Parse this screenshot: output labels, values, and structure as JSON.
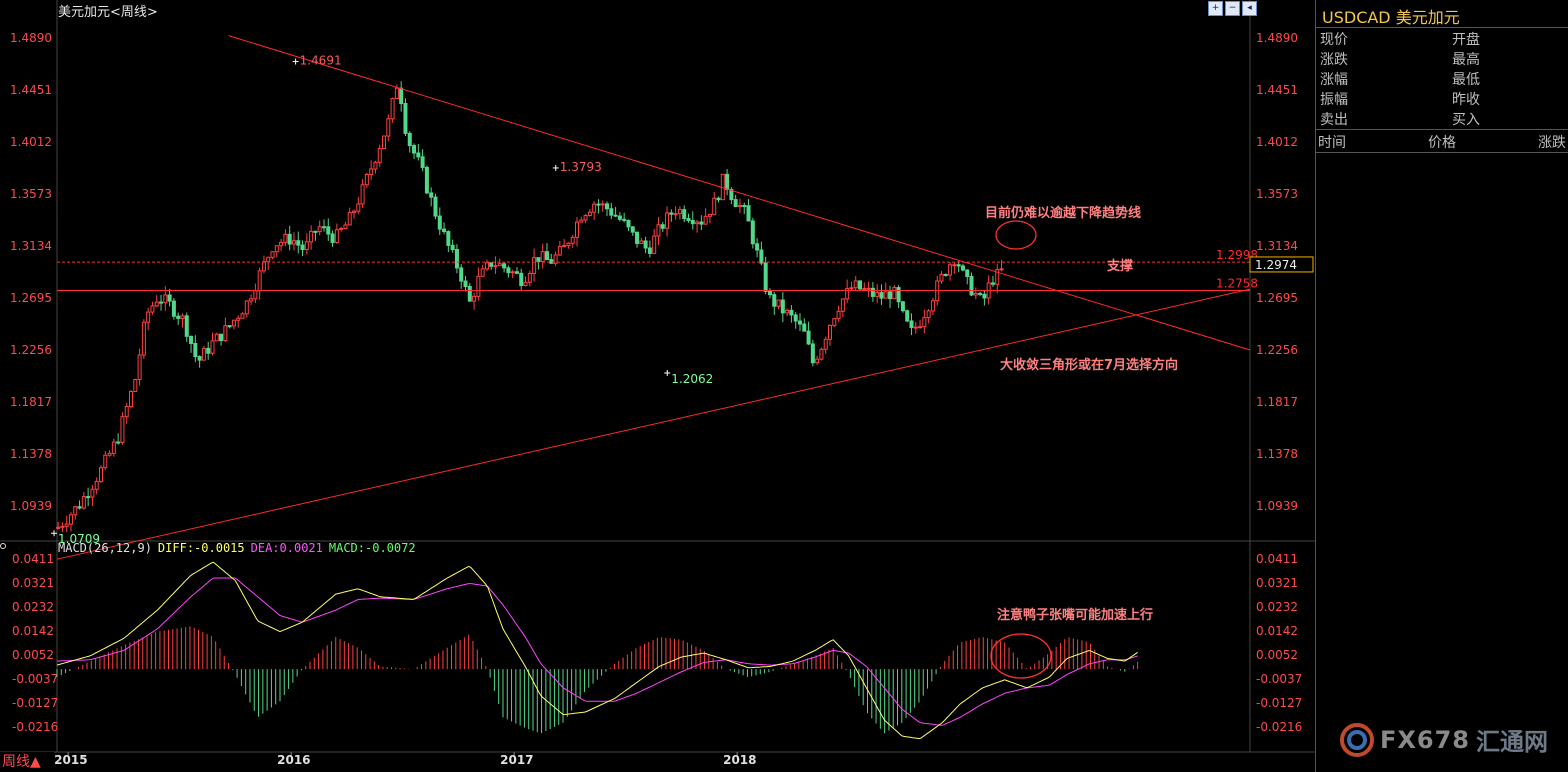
{
  "panel": {
    "title": "美元加元<周线>",
    "period_button": "周线▲",
    "toolbar_icons": [
      "zoom-in-icon",
      "zoom-out-icon",
      "scroll-left-icon"
    ]
  },
  "colors": {
    "background": "#000000",
    "up": "#ff4040",
    "down": "#52d88a",
    "axis_label": "#ff4a4a",
    "trend_line": "#ff2a2a",
    "diff_line": "#ffff66",
    "dea_line": "#ff44ff",
    "annotation": "#ff8080"
  },
  "chart_data": [
    {
      "type": "candlestick",
      "title": "美元加元<周线>",
      "x_ticks": [
        "2015",
        "2016",
        "2017",
        "2018"
      ],
      "y_ticks": [
        "1.4890",
        "1.4451",
        "1.4012",
        "1.3573",
        "1.3134",
        "1.2695",
        "1.2256",
        "1.1817",
        "1.1378",
        "1.0939"
      ],
      "ylim": [
        1.049,
        1.496
      ],
      "marks": [
        {
          "label": "1.4691",
          "value": 1.4691,
          "date": "2016-01"
        },
        {
          "label": "1.3793",
          "value": 1.3793,
          "date": "2017-03"
        },
        {
          "label": "1.2062",
          "value": 1.2062,
          "date": "2017-09"
        },
        {
          "label": "1.0709",
          "value": 1.0709,
          "date": "2014-12"
        }
      ],
      "price_lines": [
        {
          "label": "1.2998",
          "value": 1.2998,
          "style": "dashed"
        },
        {
          "label": "1.2758",
          "value": 1.2758,
          "style": "solid"
        }
      ],
      "current_price": "1.2974",
      "trend_lines": [
        {
          "name": "downtrend",
          "from": [
            2015.72,
            1.491
          ],
          "to": [
            2020.3,
            1.2256
          ]
        },
        {
          "name": "uptrend",
          "from": [
            2014.95,
            1.049
          ],
          "to": [
            2020.3,
            1.277
          ]
        }
      ],
      "annotations": [
        "目前仍难以逾越下降趋势线",
        "支撑",
        "大收敛三角形或在7月选择方向"
      ],
      "grid": false
    },
    {
      "type": "macd",
      "params": "MACD(26,12,9)",
      "diff": "DIFF:-0.0015",
      "dea": "DEA:0.0021",
      "macd": "MACD:-0.0072",
      "y_ticks": [
        "0.0411",
        "0.0321",
        "0.0232",
        "0.0142",
        "0.0052",
        "-0.0037",
        "-0.0127",
        "-0.0216"
      ],
      "ylim": [
        -0.029,
        0.0445
      ],
      "annotation": "注意鸭子张嘴可能加速上行",
      "diff_keypoints": [
        [
          2014.95,
          0.0015
        ],
        [
          2015.1,
          0.005
        ],
        [
          2015.25,
          0.0115
        ],
        [
          2015.4,
          0.022
        ],
        [
          2015.55,
          0.035
        ],
        [
          2015.65,
          0.04
        ],
        [
          2015.75,
          0.033
        ],
        [
          2015.85,
          0.018
        ],
        [
          2015.95,
          0.014
        ],
        [
          2016.05,
          0.0175
        ],
        [
          2016.2,
          0.028
        ],
        [
          2016.3,
          0.03
        ],
        [
          2016.4,
          0.027
        ],
        [
          2016.55,
          0.026
        ],
        [
          2016.7,
          0.034
        ],
        [
          2016.8,
          0.0385
        ],
        [
          2016.88,
          0.031
        ],
        [
          2016.95,
          0.015
        ],
        [
          2017.05,
          0.001
        ],
        [
          2017.12,
          -0.01
        ],
        [
          2017.22,
          -0.017
        ],
        [
          2017.32,
          -0.016
        ],
        [
          2017.45,
          -0.011
        ],
        [
          2017.55,
          -0.005
        ],
        [
          2017.65,
          0.001
        ],
        [
          2017.75,
          0.0045
        ],
        [
          2017.85,
          0.006
        ],
        [
          2017.95,
          0.0035
        ],
        [
          2018.05,
          0.0005
        ],
        [
          2018.15,
          0.001
        ],
        [
          2018.25,
          0.003
        ],
        [
          2018.35,
          0.007
        ],
        [
          2018.43,
          0.011
        ],
        [
          2018.5,
          0.005
        ],
        [
          2018.58,
          -0.007
        ],
        [
          2018.66,
          -0.019
        ],
        [
          2018.74,
          -0.025
        ],
        [
          2018.82,
          -0.026
        ],
        [
          2018.92,
          -0.02
        ],
        [
          2019.0,
          -0.013
        ],
        [
          2019.1,
          -0.007
        ],
        [
          2019.2,
          -0.004
        ],
        [
          2019.3,
          -0.007
        ],
        [
          2019.4,
          -0.003
        ],
        [
          2019.48,
          0.004
        ],
        [
          2019.58,
          0.007
        ],
        [
          2019.66,
          0.004
        ],
        [
          2019.74,
          0.003
        ],
        [
          2019.8,
          0.0065
        ]
      ],
      "dea_keypoints": [
        [
          2014.95,
          0.003
        ],
        [
          2015.1,
          0.0035
        ],
        [
          2015.25,
          0.007
        ],
        [
          2015.4,
          0.015
        ],
        [
          2015.55,
          0.027
        ],
        [
          2015.65,
          0.034
        ],
        [
          2015.75,
          0.034
        ],
        [
          2015.85,
          0.027
        ],
        [
          2015.95,
          0.02
        ],
        [
          2016.05,
          0.0175
        ],
        [
          2016.2,
          0.022
        ],
        [
          2016.3,
          0.026
        ],
        [
          2016.4,
          0.0265
        ],
        [
          2016.55,
          0.026
        ],
        [
          2016.7,
          0.03
        ],
        [
          2016.8,
          0.032
        ],
        [
          2016.88,
          0.031
        ],
        [
          2016.95,
          0.024
        ],
        [
          2017.05,
          0.012
        ],
        [
          2017.12,
          0.002
        ],
        [
          2017.22,
          -0.007
        ],
        [
          2017.32,
          -0.012
        ],
        [
          2017.45,
          -0.012
        ],
        [
          2017.55,
          -0.009
        ],
        [
          2017.65,
          -0.005
        ],
        [
          2017.75,
          -0.001
        ],
        [
          2017.85,
          0.0025
        ],
        [
          2017.95,
          0.0035
        ],
        [
          2018.05,
          0.002
        ],
        [
          2018.15,
          0.0015
        ],
        [
          2018.25,
          0.002
        ],
        [
          2018.35,
          0.0045
        ],
        [
          2018.43,
          0.007
        ],
        [
          2018.5,
          0.006
        ],
        [
          2018.58,
          0.001
        ],
        [
          2018.66,
          -0.007
        ],
        [
          2018.74,
          -0.015
        ],
        [
          2018.82,
          -0.02
        ],
        [
          2018.92,
          -0.021
        ],
        [
          2019.0,
          -0.018
        ],
        [
          2019.1,
          -0.013
        ],
        [
          2019.2,
          -0.009
        ],
        [
          2019.3,
          -0.007
        ],
        [
          2019.4,
          -0.006
        ],
        [
          2019.48,
          -0.002
        ],
        [
          2019.58,
          0.002
        ],
        [
          2019.66,
          0.0035
        ],
        [
          2019.74,
          0.0035
        ],
        [
          2019.8,
          0.005
        ]
      ]
    }
  ],
  "info_panel": {
    "symbol": "USDCAD",
    "name": "美元加元",
    "rows_left": [
      "现价",
      "涨跌",
      "涨幅",
      "振幅",
      "卖出"
    ],
    "rows_right": [
      "开盘",
      "最高",
      "最低",
      "昨收",
      "买入"
    ],
    "trade_headers": [
      "时间",
      "价格",
      "涨跌"
    ]
  },
  "logo": {
    "text": "FX678",
    "cn": "汇通网"
  }
}
